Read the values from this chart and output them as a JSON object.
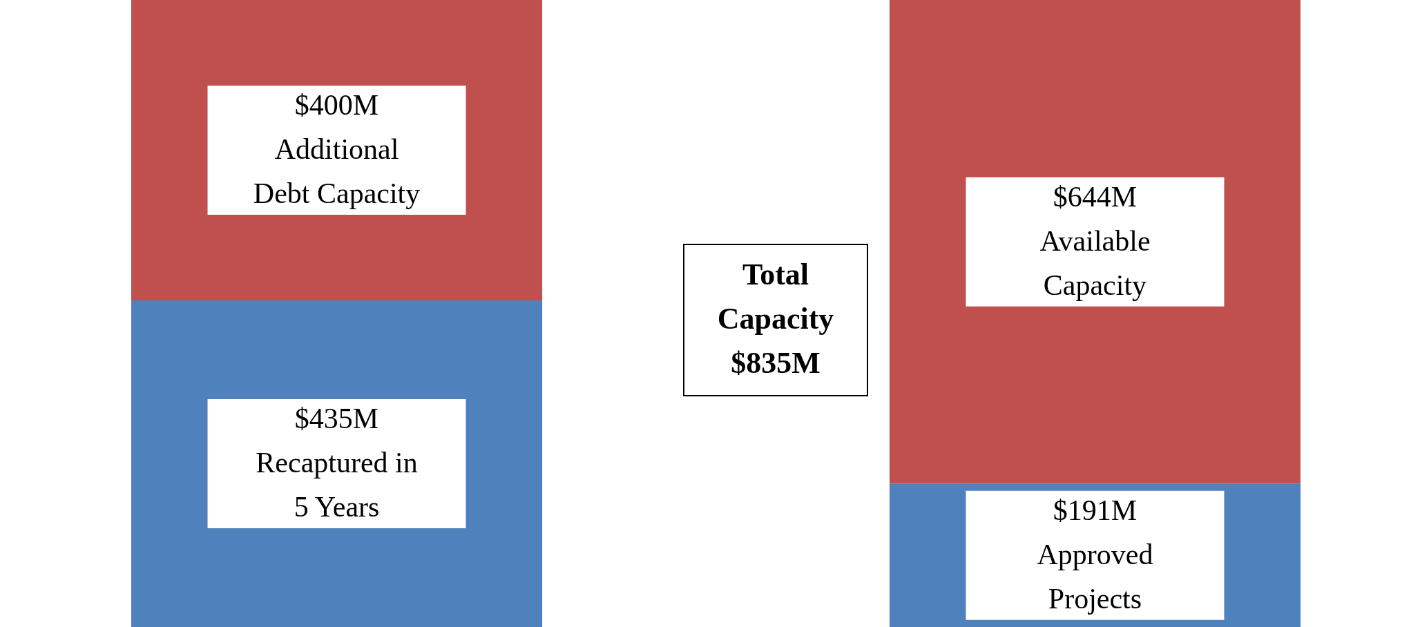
{
  "chart_data": {
    "type": "bar",
    "stacked": true,
    "categories": [
      null,
      null
    ],
    "ylim": [
      0,
      835
    ],
    "tick_labels": false,
    "grid": false,
    "series": [
      {
        "color": "#4f81bd",
        "values": [
          435,
          191
        ],
        "value_labels": [
          "$435M",
          "$191M"
        ]
      },
      {
        "color": "#c0504d",
        "values": [
          400,
          644
        ],
        "value_labels": [
          "$400M",
          "$644M"
        ]
      }
    ],
    "annotations": [
      "Total\nCapacity\n$835M",
      "Recaptured in\n5 Years",
      "Approved\nProjects",
      "Additional\nDebt Capacity",
      "Available\nCapacity"
    ]
  }
}
